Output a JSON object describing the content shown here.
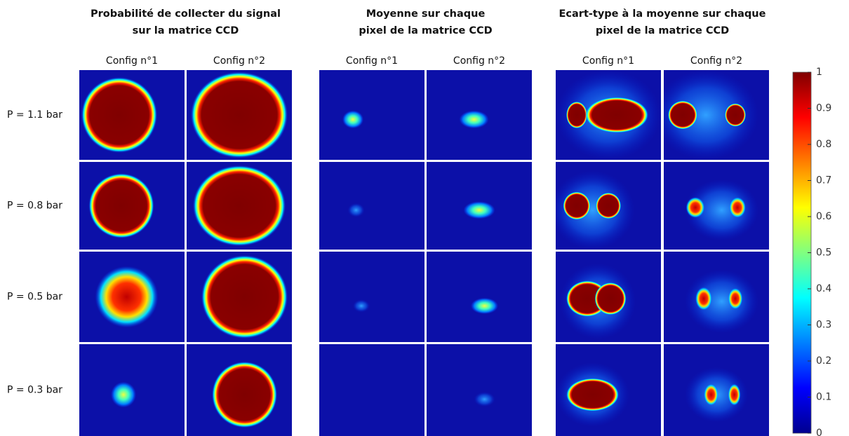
{
  "groups": [
    {
      "title_lines": [
        "Probabilité de collecter du signal",
        "sur la matrice CCD"
      ],
      "configs": [
        "Config n°1",
        "Config n°2"
      ]
    },
    {
      "title_lines": [
        "Moyenne sur chaque",
        "pixel de la matrice CCD"
      ],
      "configs": [
        "Config n°1",
        "Config n°2"
      ]
    },
    {
      "title_lines": [
        "Ecart-type à la moyenne sur chaque",
        "pixel de la matrice CCD"
      ],
      "configs": [
        "Config n°1",
        "Config n°2"
      ]
    }
  ],
  "rows": [
    "P = 1.1 bar",
    "P = 0.8 bar",
    "P = 0.5 bar",
    "P = 0.3 bar"
  ],
  "colorbar": {
    "lim": [
      0,
      1
    ],
    "ticks": [
      0,
      0.1,
      0.2,
      0.3,
      0.4,
      0.5,
      0.6,
      0.7,
      0.8,
      0.9,
      1
    ]
  }
}
